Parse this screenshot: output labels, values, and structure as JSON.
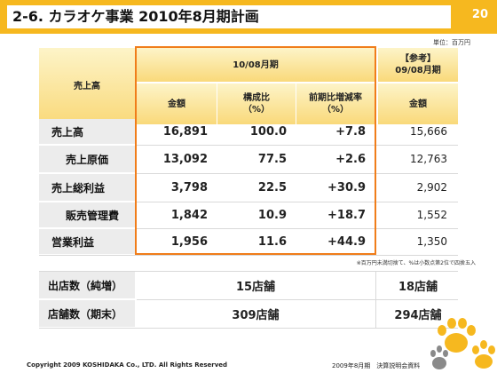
{
  "header": {
    "title": "2-6. カラオケ事業 2010年8月期計画",
    "page_number": "20"
  },
  "unit": "単位：百万円",
  "table": {
    "row_header": "売上高",
    "period_header": "10/08月期",
    "ref_header_line1": "【参考】",
    "ref_header_line2": "09/08月期",
    "col_amount": "金額",
    "col_ratio_line1": "構成比",
    "col_ratio_line2": "（%）",
    "col_change_line1": "前期比増減率",
    "col_change_line2": "（%）",
    "col_ref_amount": "金額",
    "rows": [
      {
        "label": "売上高",
        "amount": "16,891",
        "ratio": "100.0",
        "change": "+7.8",
        "ref": "15,666"
      },
      {
        "label": "売上原価",
        "amount": "13,092",
        "ratio": "77.5",
        "change": "+2.6",
        "ref": "12,763"
      },
      {
        "label": "売上総利益",
        "amount": "3,798",
        "ratio": "22.5",
        "change": "+30.9",
        "ref": "2,902"
      },
      {
        "label": "販売管理費",
        "amount": "1,842",
        "ratio": "10.9",
        "change": "+18.7",
        "ref": "1,552"
      },
      {
        "label": "営業利益",
        "amount": "1,956",
        "ratio": "11.6",
        "change": "+44.9",
        "ref": "1,350"
      }
    ]
  },
  "note": "※百万円未満切捨て、%は小数点第2位で四捨五入",
  "stores": [
    {
      "label": "出店数（純増）",
      "current": "15店舗",
      "ref": "18店舗"
    },
    {
      "label": "店舗数（期末）",
      "current": "309店舗",
      "ref": "294店舗"
    }
  ],
  "footer": {
    "copyright": "Copyright 2009 KOSHIDAKA Co., LTD. All Rights Reserved",
    "meeting": "2009年8月期　決算説明会資料"
  },
  "colors": {
    "accent": "#f6b81f",
    "highlight_border": "#f07d1a",
    "header_fill": "#f9d97a",
    "label_fill": "#ececec"
  }
}
